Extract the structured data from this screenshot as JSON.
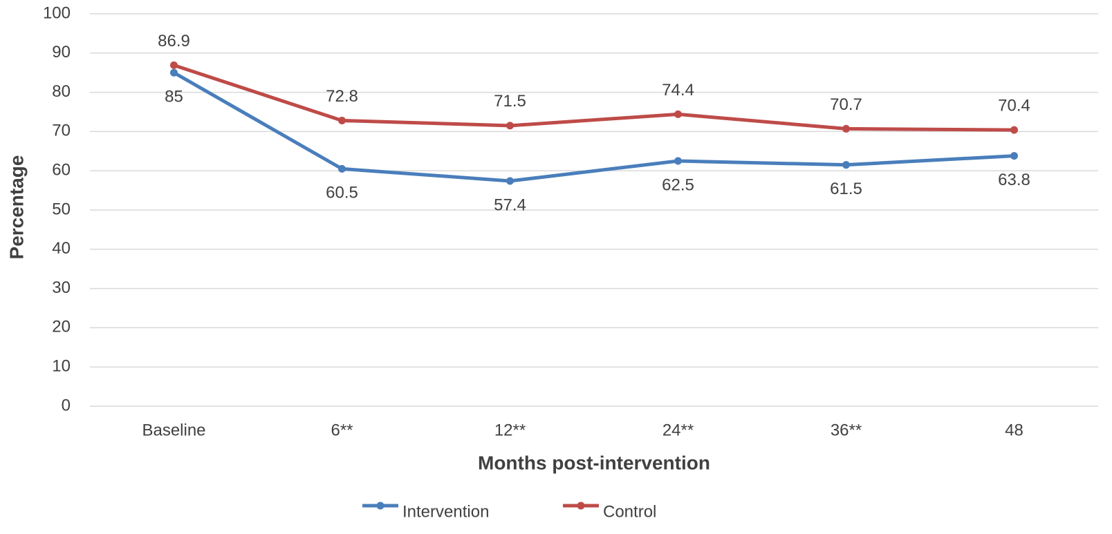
{
  "chart_data": {
    "type": "line",
    "x_label": "Months post-intervention",
    "y_label": "Percentage",
    "categories": [
      "Baseline",
      "6**",
      "12**",
      "24**",
      "36**",
      "48"
    ],
    "series": [
      {
        "name": "Intervention",
        "color": "#4a7ebb",
        "values": [
          85,
          60.5,
          57.4,
          62.5,
          61.5,
          63.8
        ],
        "label_position": "below"
      },
      {
        "name": "Control",
        "color": "#be4b48",
        "values": [
          86.9,
          72.8,
          71.5,
          74.4,
          70.7,
          70.4
        ],
        "label_position": "above"
      }
    ],
    "ylim": [
      0,
      100
    ],
    "yticks": [
      0,
      10,
      20,
      30,
      40,
      50,
      60,
      70,
      80,
      90,
      100
    ],
    "grid": true,
    "legend": "bottom"
  }
}
